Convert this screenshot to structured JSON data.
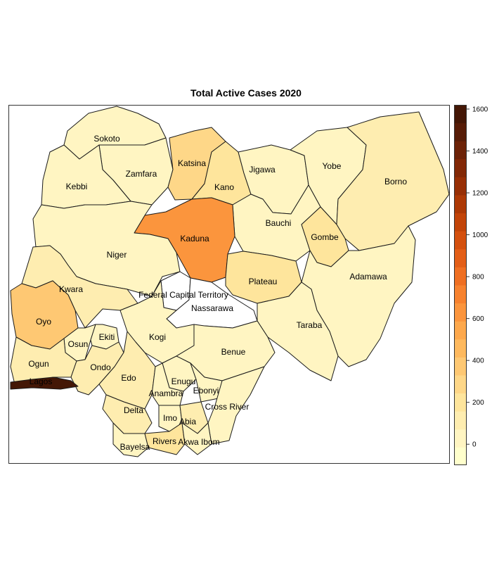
{
  "title": "Total Active Cases 2020",
  "legend": {
    "min": -100,
    "max": 1620,
    "ticks": [
      0,
      200,
      400,
      600,
      800,
      1000,
      1200,
      1400,
      1600
    ],
    "bin_colors": [
      "#ffffcc",
      "#fff5c2",
      "#feedb0",
      "#fee59c",
      "#fed788",
      "#fec873",
      "#feb95e",
      "#fda84c",
      "#fb953d",
      "#f7822f",
      "#ef6f22",
      "#e35e17",
      "#d4500e",
      "#c24408",
      "#ad3905",
      "#972f05",
      "#822806",
      "#6c2207",
      "#571c07",
      "#441706"
    ]
  },
  "states": [
    {
      "name": "Sokoto",
      "cases": 30
    },
    {
      "name": "Zamfara",
      "cases": 10
    },
    {
      "name": "Kebbi",
      "cases": 30
    },
    {
      "name": "Katsina",
      "cases": 250
    },
    {
      "name": "Kano",
      "cases": 160
    },
    {
      "name": "Jigawa",
      "cases": 40
    },
    {
      "name": "Yobe",
      "cases": 40
    },
    {
      "name": "Borno",
      "cases": 80
    },
    {
      "name": "Bauchi",
      "cases": 60
    },
    {
      "name": "Gombe",
      "cases": 170
    },
    {
      "name": "Kaduna",
      "cases": 650
    },
    {
      "name": "Niger",
      "cases": 50
    },
    {
      "name": "Kwara",
      "cases": 130
    },
    {
      "name": "Oyo",
      "cases": 380
    },
    {
      "name": "Federal Capital Territory",
      "cases": null
    },
    {
      "name": "Nassarawa",
      "cases": null
    },
    {
      "name": "Plateau",
      "cases": 220
    },
    {
      "name": "Adamawa",
      "cases": 40
    },
    {
      "name": "Taraba",
      "cases": 30
    },
    {
      "name": "Kogi",
      "cases": 5
    },
    {
      "name": "Osun",
      "cases": 60
    },
    {
      "name": "Ekiti",
      "cases": 40
    },
    {
      "name": "Ogun",
      "cases": 120
    },
    {
      "name": "Ondo",
      "cases": 110
    },
    {
      "name": "Edo",
      "cases": 120
    },
    {
      "name": "Benue",
      "cases": 50
    },
    {
      "name": "Lagos",
      "cases": 1600
    },
    {
      "name": "Enugu",
      "cases": 60
    },
    {
      "name": "Ebonyi",
      "cases": 60
    },
    {
      "name": "Anambra",
      "cases": 50
    },
    {
      "name": "Delta",
      "cases": 120
    },
    {
      "name": "Cross River",
      "cases": 40
    },
    {
      "name": "Imo",
      "cases": 50
    },
    {
      "name": "Abia",
      "cases": 90
    },
    {
      "name": "Bayelsa",
      "cases": 50
    },
    {
      "name": "Rivers",
      "cases": 200
    },
    {
      "name": "Akwa Ibom",
      "cases": 70
    }
  ]
}
